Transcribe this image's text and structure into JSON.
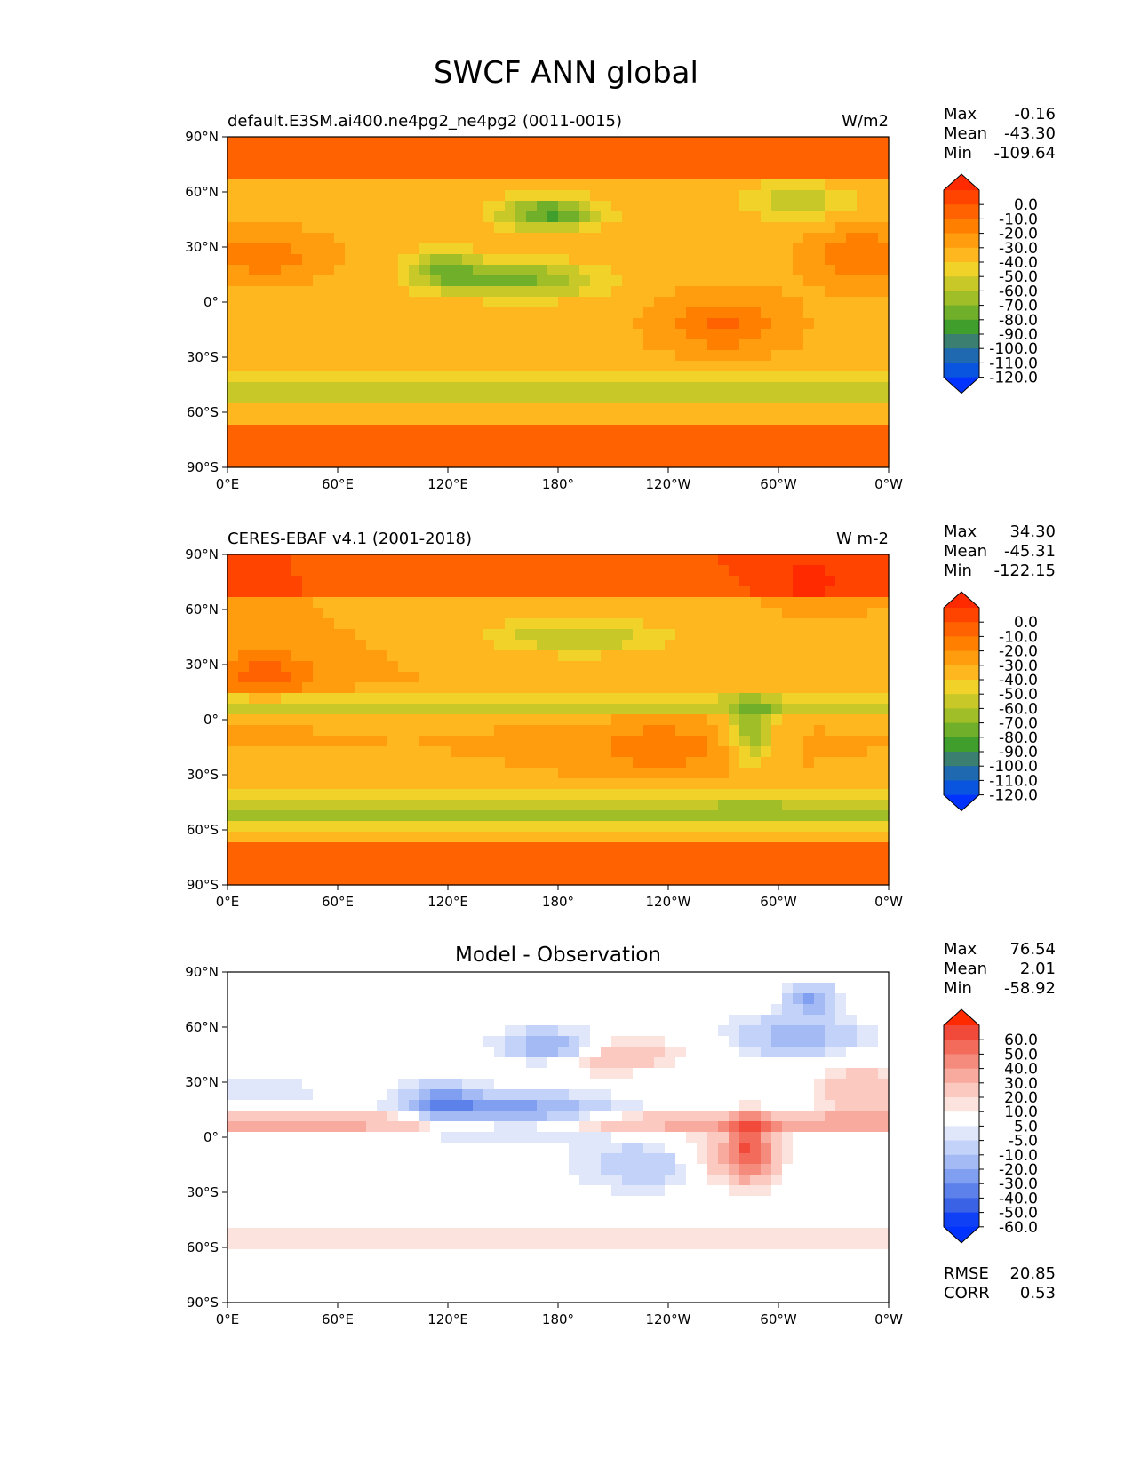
{
  "figure": {
    "title": "SWCF ANN global"
  },
  "chart_data": [
    {
      "type": "heatmap",
      "panel_id": "model",
      "left_title": "default.E3SM.ai400.ne4pg2_ne4pg2 (0011-0015)",
      "center_title": "",
      "units": "W/m2",
      "stats": [
        {
          "label": "Max",
          "value": "-0.16"
        },
        {
          "label": "Mean",
          "value": "-43.30"
        },
        {
          "label": "Min",
          "value": "-109.64"
        }
      ],
      "extra_stats": [],
      "colorbar": {
        "levels": [
          "0.0",
          "-10.0",
          "-20.0",
          "-30.0",
          "-40.0",
          "-50.0",
          "-60.0",
          "-70.0",
          "-80.0",
          "-90.0",
          "-100.0",
          "-110.0",
          "-120.0"
        ],
        "colors": [
          "#ff2a00",
          "#ff4400",
          "#ff6200",
          "#ff8000",
          "#ff9d0f",
          "#ffb71f",
          "#f0d229",
          "#c8c828",
          "#9fbe28",
          "#6faf2a",
          "#3f9e2c",
          "#3a7f6f",
          "#1f69b0",
          "#0a55e0",
          "#0033ff"
        ]
      },
      "x_ticks": [
        "0°E",
        "60°E",
        "120°E",
        "180°",
        "120°W",
        "60°W",
        "0°W"
      ],
      "y_ticks": [
        "90°N",
        "60°N",
        "30°N",
        "0°",
        "30°S",
        "60°S",
        "90°S"
      ]
    },
    {
      "type": "heatmap",
      "panel_id": "obs",
      "left_title": "CERES-EBAF v4.1 (2001-2018)",
      "center_title": "",
      "units": "W m-2",
      "stats": [
        {
          "label": "Max",
          "value": "34.30"
        },
        {
          "label": "Mean",
          "value": "-45.31"
        },
        {
          "label": "Min",
          "value": "-122.15"
        }
      ],
      "extra_stats": [],
      "colorbar": {
        "levels": [
          "0.0",
          "-10.0",
          "-20.0",
          "-30.0",
          "-40.0",
          "-50.0",
          "-60.0",
          "-70.0",
          "-80.0",
          "-90.0",
          "-100.0",
          "-110.0",
          "-120.0"
        ],
        "colors": [
          "#ff2a00",
          "#ff4400",
          "#ff6200",
          "#ff8000",
          "#ff9d0f",
          "#ffb71f",
          "#f0d229",
          "#c8c828",
          "#9fbe28",
          "#6faf2a",
          "#3f9e2c",
          "#3a7f6f",
          "#1f69b0",
          "#0a55e0",
          "#0033ff"
        ]
      },
      "x_ticks": [
        "0°E",
        "60°E",
        "120°E",
        "180°",
        "120°W",
        "60°W",
        "0°W"
      ],
      "y_ticks": [
        "90°N",
        "60°N",
        "30°N",
        "0°",
        "30°S",
        "60°S",
        "90°S"
      ]
    },
    {
      "type": "heatmap",
      "panel_id": "diff",
      "left_title": "",
      "center_title": "Model - Observation",
      "units": "",
      "stats": [
        {
          "label": "Max",
          "value": "76.54"
        },
        {
          "label": "Mean",
          "value": "2.01"
        },
        {
          "label": "Min",
          "value": "-58.92"
        }
      ],
      "extra_stats": [
        {
          "label": "RMSE",
          "value": "20.85"
        },
        {
          "label": "CORR",
          "value": "0.53"
        }
      ],
      "colorbar": {
        "levels": [
          "60.0",
          "50.0",
          "40.0",
          "30.0",
          "20.0",
          "10.0",
          "5.0",
          "-5.0",
          "-10.0",
          "-20.0",
          "-30.0",
          "-40.0",
          "-50.0",
          "-60.0"
        ],
        "colors": [
          "#ff2a00",
          "#f24a3a",
          "#f36b5a",
          "#f58b7d",
          "#f8aa9e",
          "#fbc9c0",
          "#fde3de",
          "#ffffff",
          "#e0e7fb",
          "#c3d2f8",
          "#a3baf4",
          "#819ff0",
          "#5c81ea",
          "#3a62e5",
          "#1040f5",
          "#0033ff"
        ]
      },
      "x_ticks": [
        "0°E",
        "60°E",
        "120°E",
        "180°",
        "120°W",
        "60°W",
        "0°W"
      ],
      "y_ticks": [
        "90°N",
        "60°N",
        "30°N",
        "0°",
        "30°S",
        "60°S",
        "90°S"
      ]
    }
  ]
}
